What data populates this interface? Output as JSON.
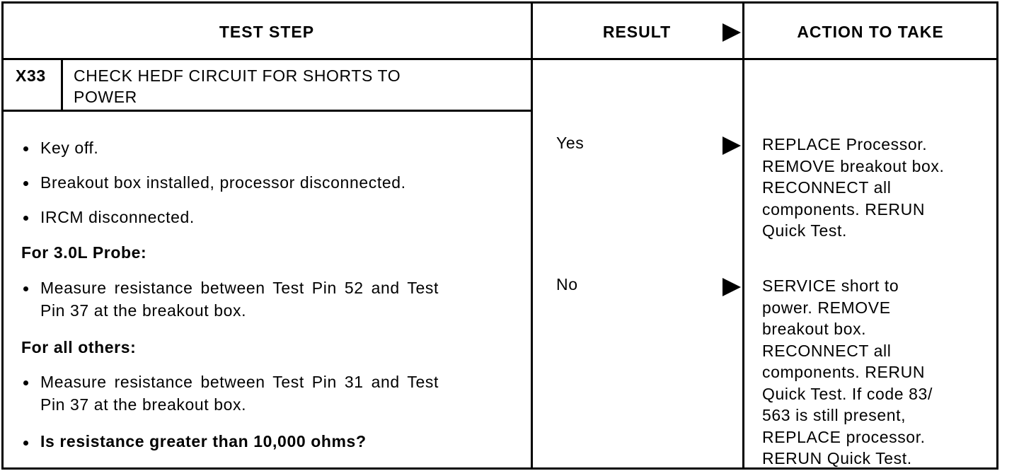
{
  "header": {
    "test_step": "TEST STEP",
    "result": "RESULT",
    "action": "ACTION TO TAKE"
  },
  "step": {
    "id": "X33",
    "title_line1": "CHECK HEDF CIRCUIT FOR SHORTS TO",
    "title_line2": "POWER"
  },
  "procedure": {
    "b1": "Key off.",
    "b2": "Breakout box installed, processor disconnected.",
    "b3": "IRCM disconnected.",
    "h1": "For 3.0L Probe:",
    "b4_l1": "Measure resistance between Test Pin 52 and Test",
    "b4_l2": "Pin 37 at the breakout box.",
    "h2": "For all others:",
    "b5_l1": "Measure resistance between Test Pin 31 and Test",
    "b5_l2": "Pin 37 at the breakout box.",
    "q": "Is resistance greater than 10,000 ohms?"
  },
  "results": [
    {
      "label": "Yes",
      "action": [
        "REPLACE Processor.",
        "REMOVE breakout box.",
        "RECONNECT all",
        "components. RERUN",
        "Quick Test."
      ]
    },
    {
      "label": "No",
      "action": [
        "SERVICE short to",
        "power. REMOVE",
        "breakout box.",
        "RECONNECT all",
        "components. RERUN",
        "Quick Test. If code 83/",
        "563 is still present,",
        "REPLACE processor.",
        "RERUN Quick Test."
      ]
    }
  ]
}
